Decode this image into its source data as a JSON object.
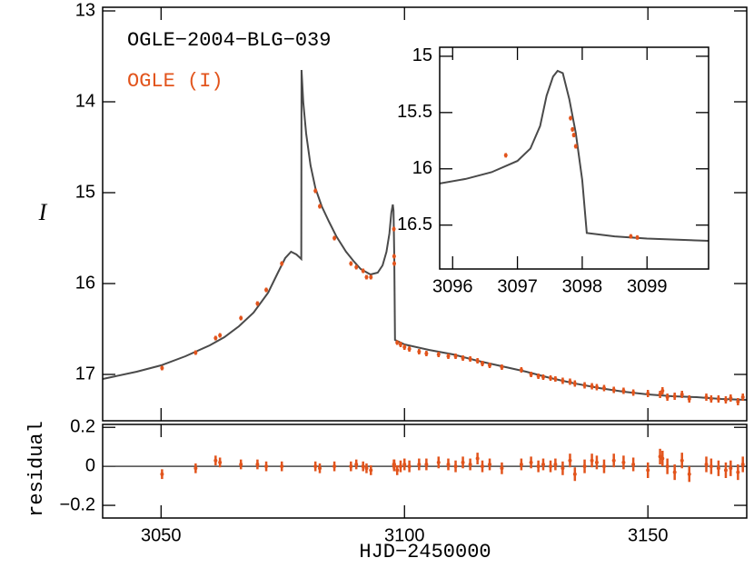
{
  "chart_data": [
    {
      "type": "line",
      "title": "OGLE−2004−BLG−039",
      "y_label": "I",
      "y_inverted": true,
      "xlim": [
        3038,
        3170.3
      ],
      "ylim": [
        12.96,
        17.51
      ],
      "yticks": [
        13,
        14,
        15,
        16,
        17
      ],
      "series": [
        {
          "color": "#4a4a4a",
          "x": [
            3038,
            3045,
            3050,
            3055,
            3060,
            3063,
            3066,
            3069,
            3072,
            3074,
            3075.5,
            3076.7,
            3077.8,
            3078.8,
            3078.85,
            3079.2,
            3079.8,
            3080.7,
            3081.7,
            3083,
            3084.5,
            3086,
            3088,
            3089.5,
            3091,
            3093,
            3094.5,
            3095.5,
            3096.3,
            3096.9,
            3097.3,
            3097.6,
            3097.75,
            3097.9,
            3098.05,
            3100,
            3105,
            3110,
            3115,
            3120,
            3125,
            3130,
            3135,
            3140,
            3145,
            3150,
            3155,
            3160,
            3165,
            3170.3
          ],
          "values": [
            17.05,
            16.97,
            16.9,
            16.8,
            16.68,
            16.59,
            16.47,
            16.32,
            16.1,
            15.88,
            15.72,
            15.65,
            15.68,
            15.73,
            13.65,
            14.0,
            14.35,
            14.7,
            14.95,
            15.15,
            15.32,
            15.48,
            15.65,
            15.75,
            15.84,
            15.9,
            15.88,
            15.8,
            15.65,
            15.45,
            15.22,
            15.13,
            15.2,
            15.7,
            16.62,
            16.67,
            16.73,
            16.78,
            16.85,
            16.91,
            16.97,
            17.04,
            17.1,
            17.15,
            17.19,
            17.22,
            17.24,
            17.25,
            17.27,
            17.28
          ]
        },
        {
          "name": "OGLE (I)",
          "color": "#e2541c",
          "x": [
            3050.2,
            3057.1,
            3061.2,
            3062.1,
            3066.4,
            3069.8,
            3071.6,
            3074.8,
            3081.7,
            3082.6,
            3085.6,
            3089.0,
            3090.1,
            3091.5,
            3092.2,
            3093.1,
            3097.82,
            3097.87,
            3097.9,
            3098.5,
            3099.2,
            3100.0,
            3101.0,
            3103.0,
            3104.5,
            3107.0,
            3109.0,
            3110.5,
            3112.0,
            3113.5,
            3115.0,
            3116.0,
            3117.5,
            3120.0,
            3124.0,
            3126.0,
            3127.5,
            3128.5,
            3130.0,
            3131.0,
            3132.5,
            3134.0,
            3135.0,
            3137.0,
            3138.5,
            3139.5,
            3141.0,
            3143.0,
            3145.0,
            3147.0,
            3150.0,
            3152.5,
            3153.0,
            3154.0,
            3155.5,
            3157.0,
            3158.5,
            3162.0,
            3163.0,
            3164.5,
            3166.0,
            3167.0,
            3168.5,
            3169.5
          ],
          "values": [
            16.93,
            16.76,
            16.6,
            16.57,
            16.38,
            16.22,
            16.07,
            15.78,
            14.98,
            15.15,
            15.5,
            15.78,
            15.82,
            15.86,
            15.93,
            15.93,
            15.4,
            15.7,
            15.78,
            16.65,
            16.67,
            16.7,
            16.72,
            16.75,
            16.77,
            16.78,
            16.8,
            16.8,
            16.82,
            16.83,
            16.85,
            16.88,
            16.9,
            16.92,
            16.95,
            17.0,
            17.02,
            17.03,
            17.04,
            17.05,
            17.07,
            17.08,
            17.1,
            17.12,
            17.13,
            17.14,
            17.15,
            17.17,
            17.18,
            17.2,
            17.21,
            17.22,
            17.18,
            17.25,
            17.24,
            17.22,
            17.27,
            17.25,
            17.27,
            17.27,
            17.28,
            17.26,
            17.3,
            17.25
          ],
          "errors": [
            0.025,
            0.025,
            0.025,
            0.025,
            0.025,
            0.025,
            0.025,
            0.025,
            0.025,
            0.025,
            0.025,
            0.025,
            0.025,
            0.025,
            0.025,
            0.025,
            0.025,
            0.025,
            0.025,
            0.025,
            0.03,
            0.03,
            0.03,
            0.03,
            0.03,
            0.03,
            0.03,
            0.03,
            0.03,
            0.03,
            0.03,
            0.03,
            0.03,
            0.03,
            0.03,
            0.03,
            0.03,
            0.03,
            0.03,
            0.03,
            0.035,
            0.035,
            0.035,
            0.035,
            0.035,
            0.035,
            0.035,
            0.035,
            0.035,
            0.035,
            0.04,
            0.04,
            0.04,
            0.04,
            0.04,
            0.04,
            0.04,
            0.04,
            0.04,
            0.04,
            0.04,
            0.04,
            0.04,
            0.04
          ]
        }
      ]
    },
    {
      "type": "line",
      "y_inverted": true,
      "xlim": [
        3095.8,
        3099.95
      ],
      "ylim": [
        14.92,
        16.89
      ],
      "xticks": [
        3096,
        3097,
        3098,
        3099
      ],
      "yticks": [
        15,
        15.5,
        16,
        16.5
      ],
      "series": [
        {
          "color": "#4a4a4a",
          "x": [
            3095.8,
            3096.2,
            3096.6,
            3097,
            3097.2,
            3097.35,
            3097.45,
            3097.55,
            3097.62,
            3097.7,
            3097.8,
            3097.9,
            3098,
            3098.07,
            3098.5,
            3099,
            3099.95
          ],
          "values": [
            16.13,
            16.09,
            16.03,
            15.93,
            15.82,
            15.62,
            15.35,
            15.18,
            15.13,
            15.15,
            15.38,
            15.68,
            16.1,
            16.57,
            16.6,
            16.62,
            16.64
          ]
        },
        {
          "color": "#e2541c",
          "x": [
            3096.82,
            3097.82,
            3097.85,
            3097.87,
            3097.9,
            3098.75,
            3098.85
          ],
          "values": [
            15.88,
            15.55,
            15.65,
            15.7,
            15.8,
            16.6,
            16.61
          ],
          "errors": [
            0.02,
            0.02,
            0.02,
            0.02,
            0.02,
            0.02,
            0.02
          ]
        }
      ]
    },
    {
      "type": "scatter",
      "y_label": "residual",
      "x_label": "HJD−2450000",
      "xlim": [
        3038,
        3170.3
      ],
      "ylim": [
        -0.265,
        0.215
      ],
      "xticks": [
        3050,
        3100,
        3150
      ],
      "yticks": [
        0.2,
        0,
        {
          "value": -0.2,
          "label": "−0.2"
        }
      ],
      "series": [
        {
          "color": "#e2541c",
          "x": [
            3050.2,
            3057.1,
            3061.2,
            3062.1,
            3066.4,
            3069.8,
            3071.6,
            3074.8,
            3081.7,
            3082.6,
            3085.6,
            3089.0,
            3090.1,
            3091.5,
            3092.2,
            3093.1,
            3097.82,
            3097.87,
            3097.9,
            3098.5,
            3099.2,
            3100.0,
            3101.0,
            3103.0,
            3104.5,
            3107.0,
            3109.0,
            3110.5,
            3112.0,
            3113.5,
            3115.0,
            3116.0,
            3117.5,
            3120.0,
            3124.0,
            3126.0,
            3127.5,
            3128.5,
            3130.0,
            3131.0,
            3132.5,
            3134.0,
            3135.0,
            3137.0,
            3138.5,
            3139.5,
            3141.0,
            3143.0,
            3145.0,
            3147.0,
            3150.0,
            3152.5,
            3153.0,
            3154.0,
            3155.5,
            3157.0,
            3158.5,
            3162.0,
            3163.0,
            3164.5,
            3166.0,
            3167.0,
            3168.5,
            3169.5
          ],
          "values": [
            -0.04,
            -0.01,
            0.03,
            0.02,
            0.01,
            0.01,
            0,
            0,
            0,
            -0.01,
            0,
            0,
            0.01,
            0,
            -0.01,
            -0.02,
            0.01,
            0,
            0.01,
            -0.02,
            0,
            0.01,
            0,
            0.01,
            0.01,
            0.02,
            0.01,
            0,
            0.02,
            0.01,
            0.04,
            0,
            0.01,
            -0.01,
            0.01,
            0.02,
            0,
            0.01,
            0,
            0.01,
            -0.01,
            0.03,
            -0.04,
            0,
            0.03,
            0.02,
            0,
            0.03,
            0.02,
            0.01,
            -0.02,
            0.05,
            0.04,
            0,
            -0.03,
            0.03,
            -0.04,
            0.01,
            0,
            -0.01,
            -0.02,
            -0.01,
            -0.03,
            0.01
          ],
          "errors": [
            0.025,
            0.025,
            0.025,
            0.025,
            0.025,
            0.025,
            0.025,
            0.025,
            0.025,
            0.025,
            0.025,
            0.025,
            0.025,
            0.025,
            0.025,
            0.025,
            0.025,
            0.025,
            0.025,
            0.025,
            0.03,
            0.03,
            0.03,
            0.03,
            0.03,
            0.03,
            0.03,
            0.03,
            0.03,
            0.03,
            0.03,
            0.03,
            0.03,
            0.03,
            0.03,
            0.03,
            0.03,
            0.03,
            0.03,
            0.03,
            0.035,
            0.035,
            0.035,
            0.035,
            0.035,
            0.035,
            0.035,
            0.035,
            0.035,
            0.035,
            0.04,
            0.04,
            0.04,
            0.04,
            0.04,
            0.04,
            0.04,
            0.04,
            0.04,
            0.04,
            0.04,
            0.04,
            0.04,
            0.04
          ]
        }
      ]
    }
  ]
}
